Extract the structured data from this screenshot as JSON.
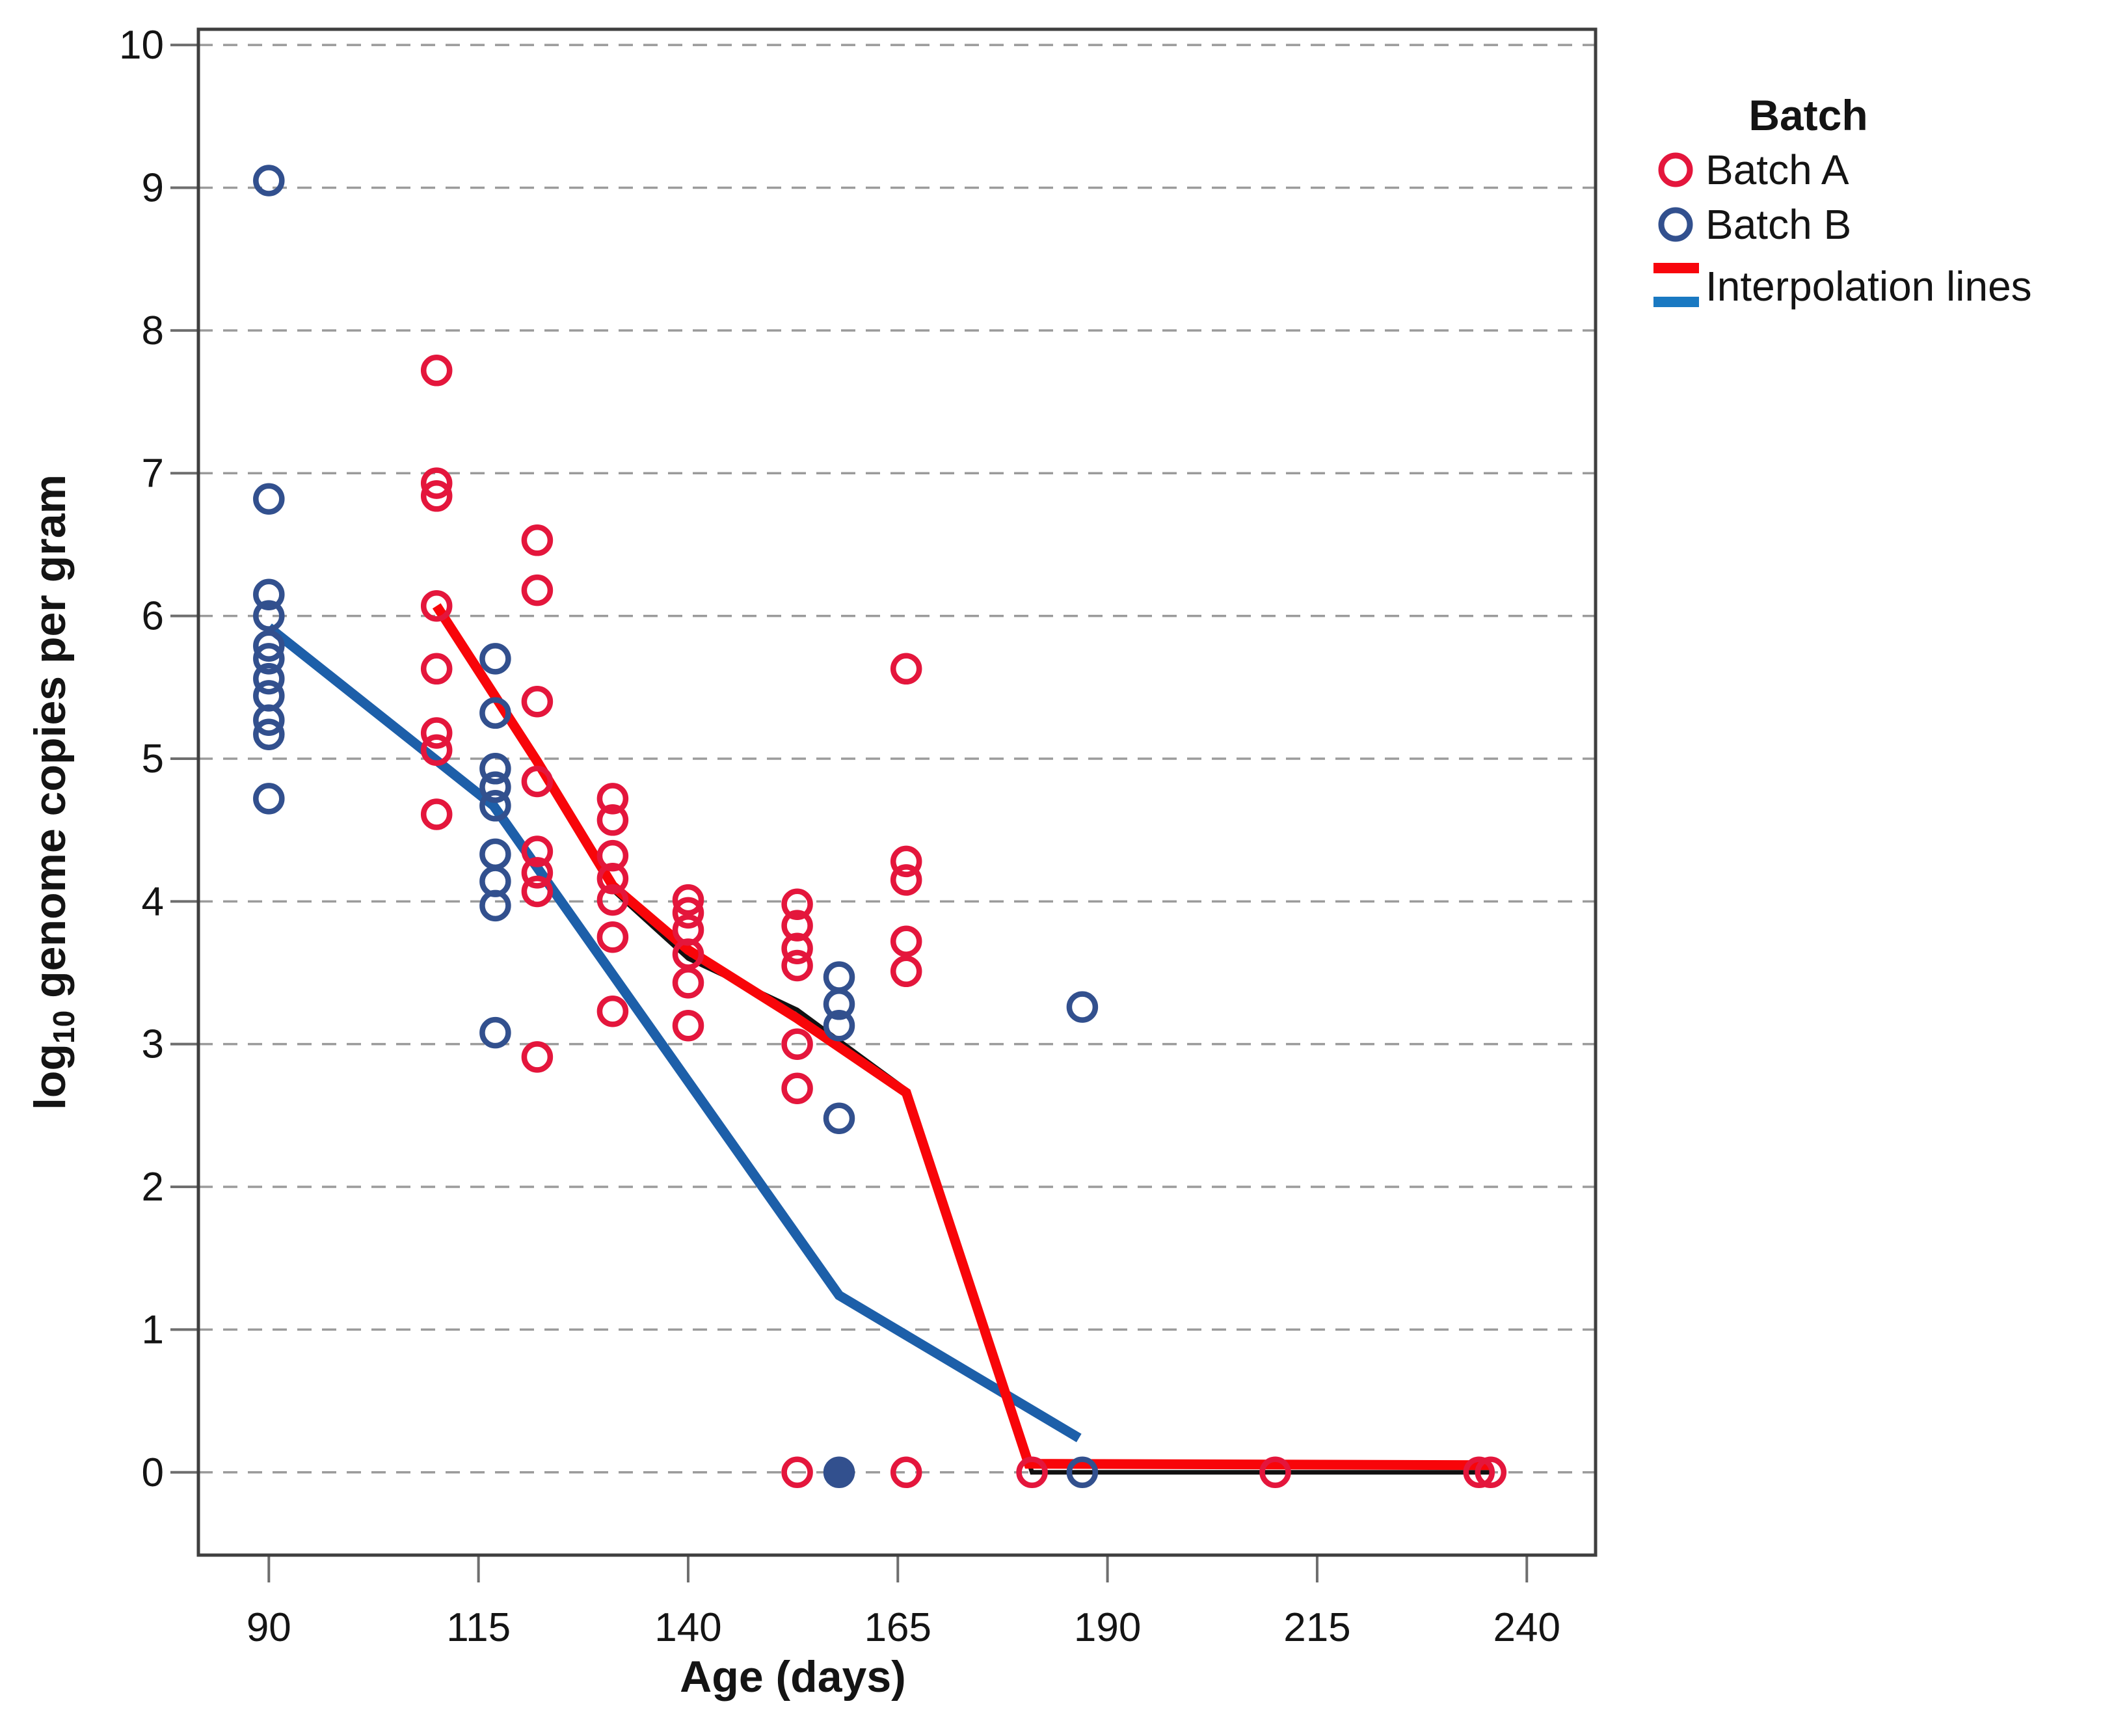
{
  "chart_data": {
    "type": "scatter",
    "title": "",
    "xlabel": "Age (days)",
    "ylabel": {
      "prefix": "log",
      "sub": "10",
      "suffix": " genome copies per gram"
    },
    "x_ticks": [
      90,
      115,
      140,
      165,
      190,
      215,
      240
    ],
    "y_ticks": [
      0,
      1,
      2,
      3,
      4,
      5,
      6,
      7,
      8,
      9,
      10
    ],
    "xlim": [
      81.6,
      248.2
    ],
    "ylim": [
      -0.58,
      10.11
    ],
    "grid": "dashed-horizontal",
    "colors": {
      "batch_a_marker": "#e4163c",
      "batch_b_marker": "#32508e",
      "line_a": "#f80509",
      "line_b": "#1d5fa9",
      "line_black": "#111111",
      "legend_line_a": "#f8050c",
      "legend_line_b": "#1a79c2",
      "gridline": "#9b9b9b",
      "frame": "#3f3f3f"
    },
    "series": [
      {
        "name": "Batch A",
        "marker": "open-circle",
        "color": "#e4163c",
        "points": [
          [
            110,
            7.72
          ],
          [
            110,
            6.93
          ],
          [
            110,
            6.84
          ],
          [
            110,
            6.07
          ],
          [
            110,
            5.63
          ],
          [
            110,
            5.18
          ],
          [
            110,
            5.06
          ],
          [
            110,
            4.61
          ],
          [
            122,
            6.53
          ],
          [
            122,
            6.18
          ],
          [
            122,
            5.4
          ],
          [
            122,
            4.84
          ],
          [
            122,
            4.35
          ],
          [
            122,
            4.2
          ],
          [
            122,
            4.07
          ],
          [
            122,
            2.91
          ],
          [
            131,
            4.72
          ],
          [
            131,
            4.57
          ],
          [
            131,
            4.32
          ],
          [
            131,
            4.16
          ],
          [
            131,
            4.01
          ],
          [
            131,
            3.75
          ],
          [
            131,
            3.23
          ],
          [
            140,
            4.01
          ],
          [
            140,
            3.92
          ],
          [
            140,
            3.8
          ],
          [
            140,
            3.63
          ],
          [
            140,
            3.43
          ],
          [
            140,
            3.13
          ],
          [
            153,
            3.98
          ],
          [
            153,
            3.83
          ],
          [
            153,
            3.67
          ],
          [
            153,
            3.55
          ],
          [
            153,
            3.0
          ],
          [
            153,
            2.69
          ],
          [
            153,
            0.0
          ],
          [
            166,
            5.63
          ],
          [
            166,
            4.28
          ],
          [
            166,
            4.15
          ],
          [
            166,
            3.72
          ],
          [
            166,
            3.51
          ],
          [
            166,
            0.0
          ],
          [
            181,
            0.0
          ],
          [
            210,
            0.0
          ],
          [
            234.3,
            0.0
          ],
          [
            235.7,
            0.0
          ]
        ]
      },
      {
        "name": "Batch B",
        "marker": "open-circle",
        "color": "#32508e",
        "points": [
          [
            90,
            9.05
          ],
          [
            90,
            6.82
          ],
          [
            90,
            6.15
          ],
          [
            90,
            6.0
          ],
          [
            90,
            5.79
          ],
          [
            90,
            5.7
          ],
          [
            90,
            5.56
          ],
          [
            90,
            5.44
          ],
          [
            90,
            5.27
          ],
          [
            90,
            5.17
          ],
          [
            90,
            4.72
          ],
          [
            117,
            5.7
          ],
          [
            117,
            5.32
          ],
          [
            117,
            4.93
          ],
          [
            117,
            4.8
          ],
          [
            117,
            4.67
          ],
          [
            117,
            4.33
          ],
          [
            117,
            4.14
          ],
          [
            117,
            3.97
          ],
          [
            117,
            3.08
          ],
          [
            158,
            3.47
          ],
          [
            158,
            3.28
          ],
          [
            158,
            3.13
          ],
          [
            158,
            2.48
          ],
          [
            158,
            0.0,
            1
          ],
          [
            187,
            3.26
          ],
          [
            187,
            0.0
          ]
        ]
      }
    ],
    "lines": [
      {
        "name": "black reference line",
        "color": "#111111",
        "width": 7,
        "points": [
          [
            110,
            6.05
          ],
          [
            122,
            4.95
          ],
          [
            131,
            4.08
          ],
          [
            140,
            3.6
          ],
          [
            153,
            3.24
          ],
          [
            166,
            2.68
          ],
          [
            181,
            0.0
          ],
          [
            235.6,
            0.0
          ]
        ]
      },
      {
        "name": "Interpolation line Batch B",
        "color": "#1d5fa9",
        "width": 15,
        "points": [
          [
            90,
            5.92
          ],
          [
            116.8,
            4.67
          ],
          [
            158,
            1.24
          ],
          [
            186.6,
            0.24
          ]
        ]
      },
      {
        "name": "Interpolation line Batch A",
        "color": "#f80509",
        "width": 15,
        "points": [
          [
            110,
            6.07
          ],
          [
            122,
            4.98
          ],
          [
            131,
            4.11
          ],
          [
            140,
            3.66
          ],
          [
            153,
            3.18
          ],
          [
            166,
            2.66
          ],
          [
            180.6,
            0.06
          ],
          [
            235.6,
            0.05
          ]
        ]
      }
    ],
    "legend": {
      "title": "Batch",
      "entries": [
        {
          "label": "Batch A",
          "marker": "open-circle",
          "color": "#e4163c"
        },
        {
          "label": "Batch B",
          "marker": "open-circle",
          "color": "#32508e"
        }
      ],
      "lines_label": "Interpolation lines",
      "position": "top-right-outside"
    }
  }
}
